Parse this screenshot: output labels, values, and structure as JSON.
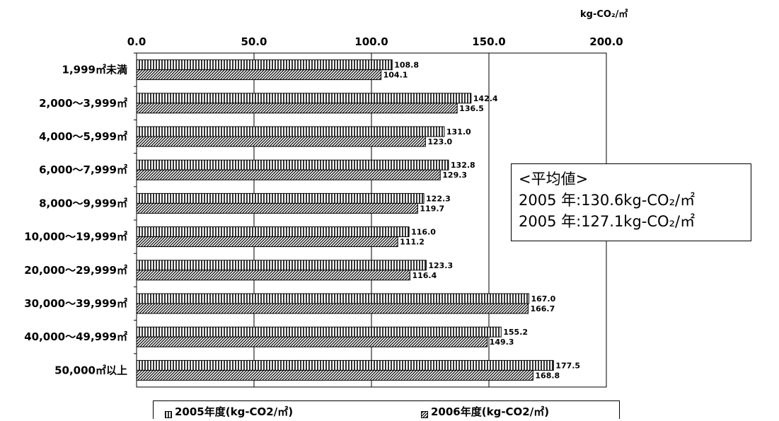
{
  "unit_label": "kg-CO₂/㎡",
  "average_box": {
    "title": "<平均値>",
    "line1": "2005 年:130.6kg-CO₂/㎡",
    "line2": "2005 年:127.1kg-CO₂/㎡"
  },
  "colors": {
    "bar_fill": "#ffffff",
    "bar_stroke": "#000000",
    "grid": "#000000"
  },
  "chart_data": {
    "type": "bar",
    "orientation": "horizontal",
    "xlim": [
      0,
      200
    ],
    "x_ticks": [
      "0.0",
      "50.0",
      "100.0",
      "150.0",
      "200.0"
    ],
    "grid": true,
    "legend_position": "bottom",
    "categories": [
      "1,999㎡未満",
      "2,000～3,999㎡",
      "4,000～5,999㎡",
      "6,000～7,999㎡",
      "8,000～9,999㎡",
      "10,000～19,999㎡",
      "20,000～29,999㎡",
      "30,000～39,999㎡",
      "40,000～49,999㎡",
      "50,000㎡以上"
    ],
    "series": [
      {
        "name": "2005年度(kg-CO2/㎡)",
        "values": [
          108.8,
          142.4,
          131.0,
          132.8,
          122.3,
          116.0,
          123.3,
          167.0,
          155.2,
          177.5
        ],
        "labels": [
          "108.8",
          "142.4",
          "131.0",
          "132.8",
          "122.3",
          "116.0",
          "123.3",
          "167.0",
          "155.2",
          "177.5"
        ]
      },
      {
        "name": "2006年度(kg-CO2/㎡)",
        "values": [
          104.1,
          136.5,
          123.0,
          129.3,
          119.7,
          111.2,
          116.4,
          166.7,
          149.3,
          168.8
        ],
        "labels": [
          "104.1",
          "136.5",
          "123.0",
          "129.3",
          "119.7",
          "111.2",
          "116.4",
          "166.7",
          "149.3",
          "168.8"
        ]
      }
    ]
  }
}
